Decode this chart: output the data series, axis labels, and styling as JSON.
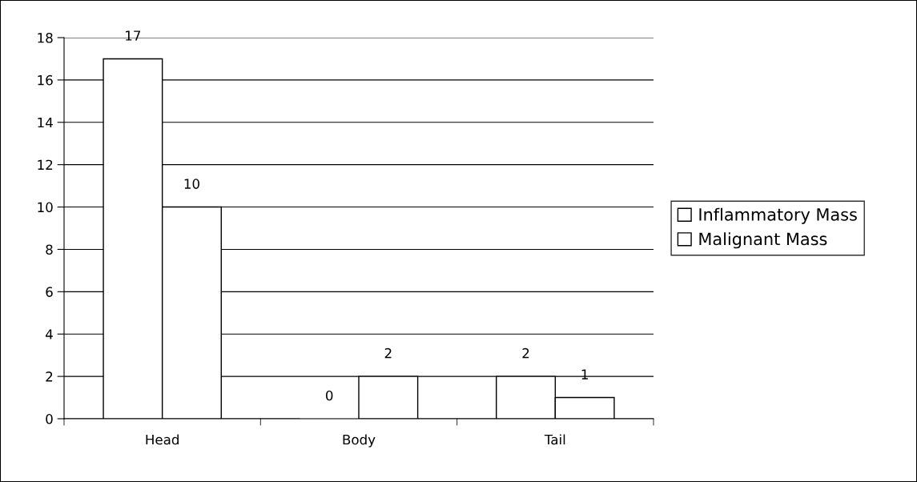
{
  "chart_data": {
    "type": "bar",
    "categories": [
      "Head",
      "Body",
      "Tail"
    ],
    "series": [
      {
        "name": "Inflammatory Mass",
        "color": "#ffffff",
        "values": [
          17,
          0,
          2
        ]
      },
      {
        "name": "Malignant Mass",
        "color": "#ffffff",
        "values": [
          10,
          2,
          1
        ]
      }
    ],
    "ylim": [
      0,
      18
    ],
    "yticks": [
      0,
      2,
      4,
      6,
      8,
      10,
      12,
      14,
      16,
      18
    ],
    "grid": "y",
    "legend": "right",
    "data_labels": true
  }
}
